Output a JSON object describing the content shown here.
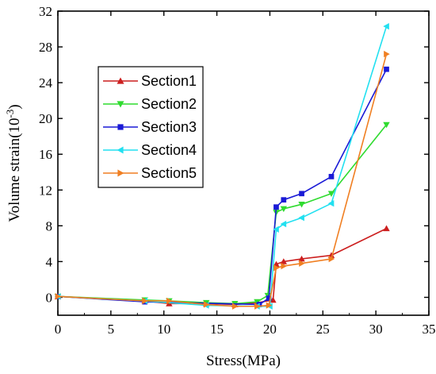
{
  "chart_data": {
    "type": "line",
    "xlabel": "Stress(MPa)",
    "ylabel_base": "Volume strain(10",
    "ylabel_exp": "-3",
    "ylabel_close": ")",
    "xlim": [
      0,
      35
    ],
    "ylim": [
      -2,
      32
    ],
    "xticks": [
      0,
      5,
      10,
      15,
      20,
      25,
      30,
      35
    ],
    "yticks": [
      0,
      4,
      8,
      12,
      16,
      20,
      24,
      28,
      32
    ],
    "grid": false,
    "legend_position": "upper-left",
    "series": [
      {
        "name": "Section1",
        "color": "#cc1f1f",
        "marker": "triangle-up",
        "x": [
          0,
          8.2,
          10.5,
          14,
          16.7,
          18.8,
          20.3,
          20.6,
          21.3,
          23,
          25.8,
          31
        ],
        "y": [
          0.1,
          -0.4,
          -0.7,
          -0.7,
          -0.8,
          -0.6,
          -0.3,
          3.7,
          4.0,
          4.3,
          4.7,
          7.7
        ]
      },
      {
        "name": "Section2",
        "color": "#2fdb2f",
        "marker": "triangle-down",
        "x": [
          0,
          8.2,
          10.5,
          14,
          16.7,
          18.8,
          19.8,
          20.6,
          21.3,
          23,
          25.8,
          31
        ],
        "y": [
          0.1,
          -0.3,
          -0.4,
          -0.6,
          -0.7,
          -0.5,
          0.2,
          9.5,
          9.9,
          10.4,
          11.6,
          19.3
        ]
      },
      {
        "name": "Section3",
        "color": "#1a1ad6",
        "marker": "square",
        "x": [
          0,
          8.2,
          19,
          19.9,
          20.6,
          21.3,
          23,
          25.8,
          31
        ],
        "y": [
          0.1,
          -0.5,
          -0.8,
          -0.1,
          10.1,
          10.9,
          11.6,
          13.5,
          25.5
        ]
      },
      {
        "name": "Section4",
        "color": "#22e0f0",
        "marker": "triangle-left",
        "x": [
          0,
          8.2,
          14,
          18.8,
          20,
          20.6,
          21.3,
          23,
          25.8,
          31
        ],
        "y": [
          0.1,
          -0.4,
          -0.9,
          -1.0,
          -1.0,
          7.6,
          8.2,
          8.9,
          10.5,
          30.3
        ]
      },
      {
        "name": "Section5",
        "color": "#f07f22",
        "marker": "triangle-right",
        "x": [
          0,
          8.2,
          10.5,
          14,
          16.7,
          18.8,
          19.9,
          20.6,
          21.3,
          23,
          25.8,
          31
        ],
        "y": [
          0.1,
          -0.4,
          -0.4,
          -0.8,
          -1.0,
          -1.0,
          -0.9,
          3.3,
          3.5,
          3.8,
          4.3,
          27.2
        ]
      }
    ]
  }
}
